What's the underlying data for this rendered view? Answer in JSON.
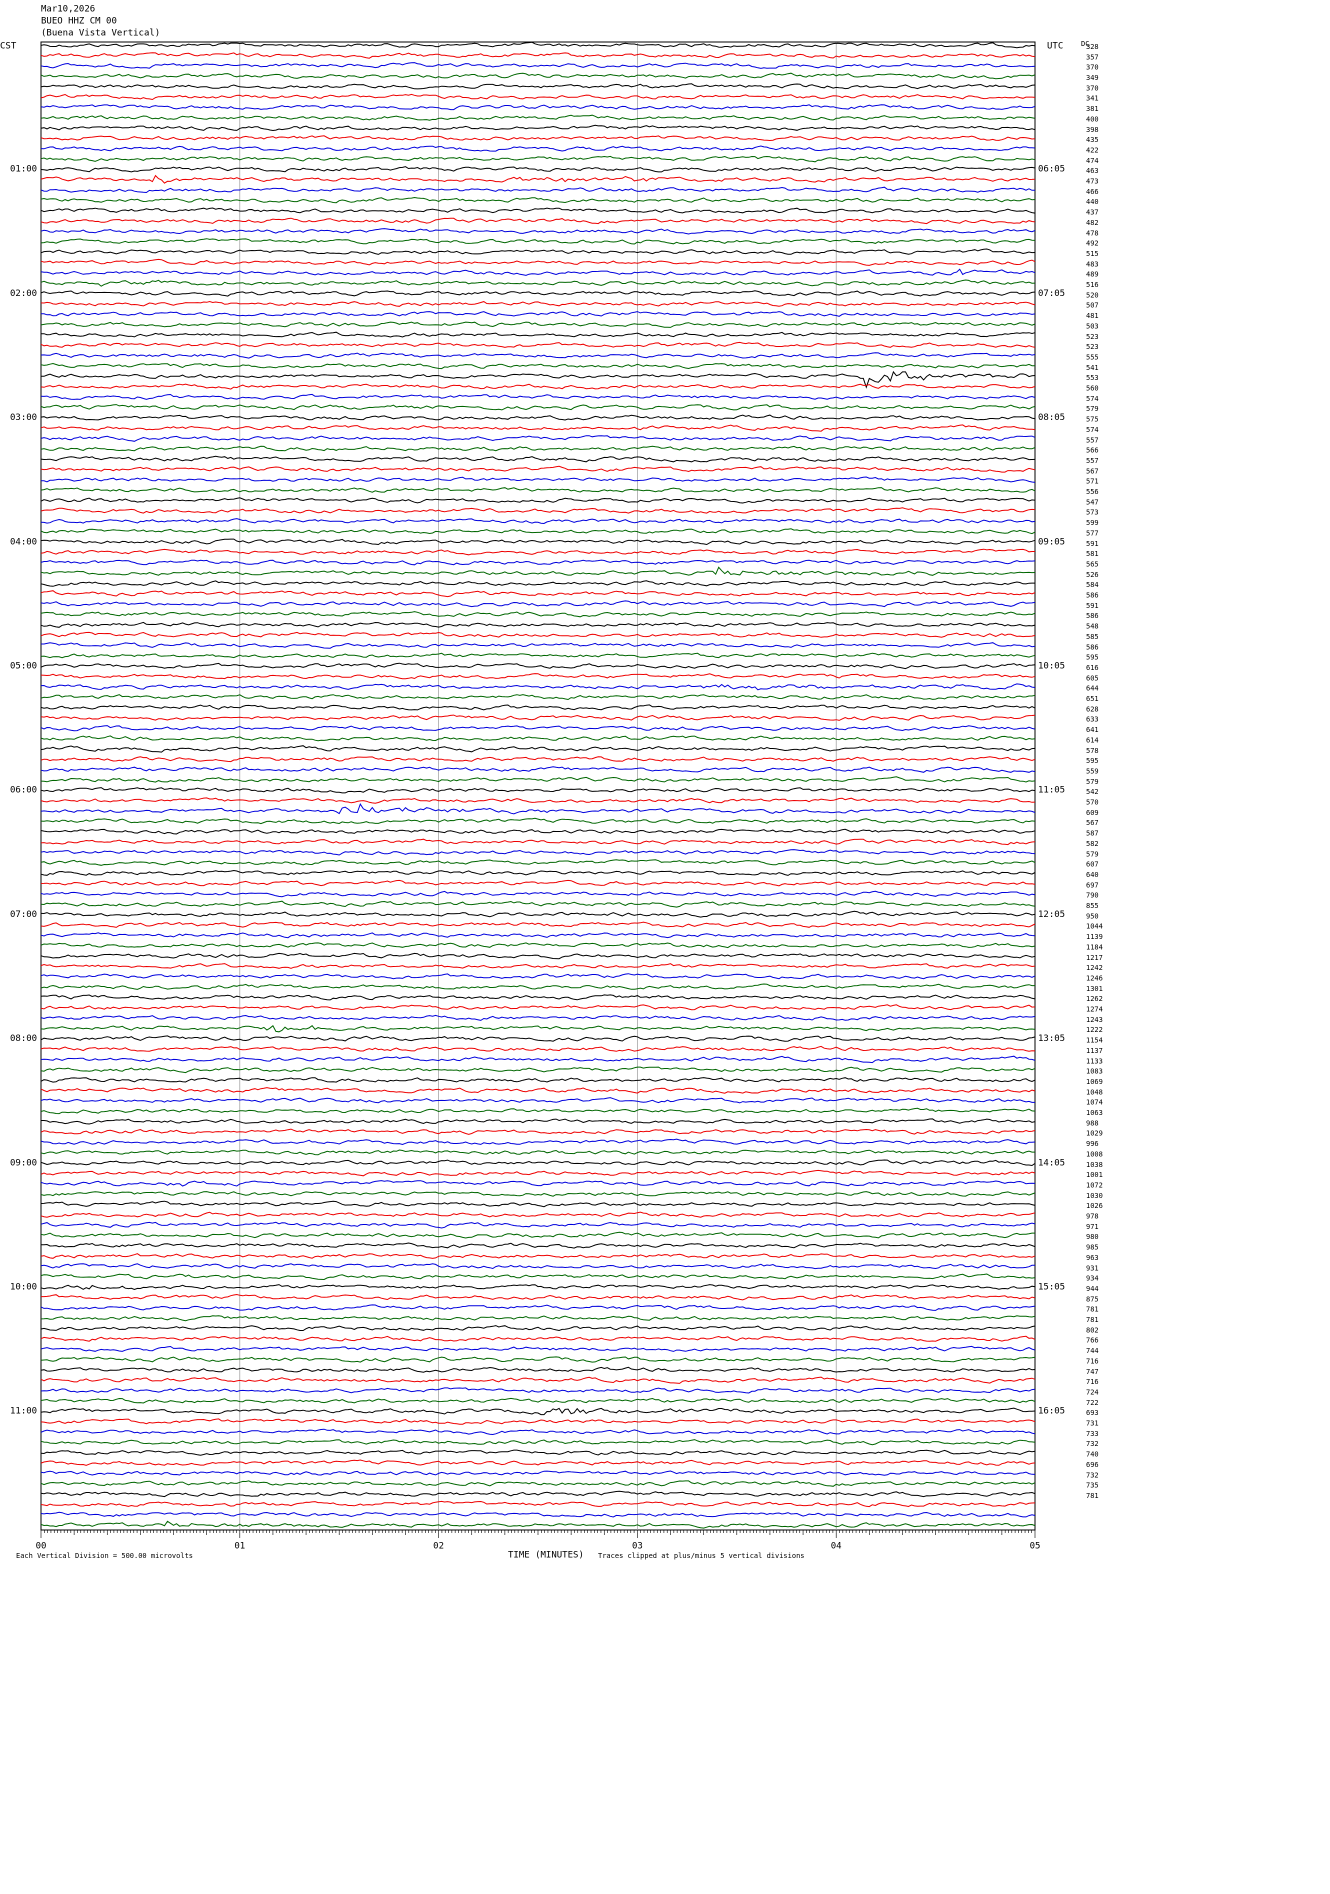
{
  "header": {
    "date": "Mar10,2026",
    "station": "BUEO HHZ CM 00",
    "location": "(Buena Vista Vertical)"
  },
  "left_axis": {
    "title": "CST",
    "labels": [
      "01:00",
      "02:00",
      "03:00",
      "04:00",
      "05:00",
      "06:00",
      "07:00",
      "08:00",
      "09:00",
      "10:00",
      "11:00"
    ]
  },
  "right_axis": {
    "title": "UTC",
    "labels": [
      "06:05",
      "07:05",
      "08:05",
      "09:05",
      "10:05",
      "11:05",
      "12:05",
      "13:05",
      "14:05",
      "15:05",
      "16:05"
    ]
  },
  "dc": {
    "title": "DC",
    "values": [
      328,
      357,
      370,
      349,
      370,
      341,
      381,
      400,
      398,
      435,
      422,
      474,
      463,
      473,
      466,
      440,
      437,
      482,
      478,
      492,
      515,
      483,
      489,
      516,
      520,
      507,
      481,
      503,
      523,
      523,
      555,
      541,
      553,
      560,
      574,
      579,
      575,
      574,
      557,
      566,
      557,
      567,
      571,
      556,
      547,
      573,
      599,
      577,
      591,
      581,
      565,
      526,
      584,
      586,
      591,
      586,
      548,
      585,
      586,
      595,
      616,
      605,
      644,
      651,
      628,
      633,
      641,
      614,
      578,
      595,
      559,
      579,
      542,
      570,
      609,
      567,
      587,
      582,
      579,
      607,
      640,
      697,
      790,
      855,
      950,
      1044,
      1139,
      1184,
      1217,
      1242,
      1246,
      1301,
      1262,
      1274,
      1243,
      1222,
      1154,
      1137,
      1133,
      1083,
      1069,
      1048,
      1074,
      1063,
      988,
      1029,
      996,
      1008,
      1038,
      1001,
      1072,
      1030,
      1026,
      978,
      971,
      980,
      985,
      963,
      931,
      934,
      944,
      875,
      781,
      781,
      802,
      766,
      744,
      716,
      747,
      716,
      724,
      722,
      693,
      731,
      733,
      732,
      740,
      696,
      732,
      735,
      781
    ]
  },
  "x_axis": {
    "title": "TIME (MINUTES)",
    "ticks": [
      "00",
      "01",
      "02",
      "03",
      "04",
      "05"
    ]
  },
  "footer": {
    "scale": "Each Vertical Division = 500.00 microvolts",
    "clip": "Traces clipped at plus/minus 5 vertical divisions"
  }
}
